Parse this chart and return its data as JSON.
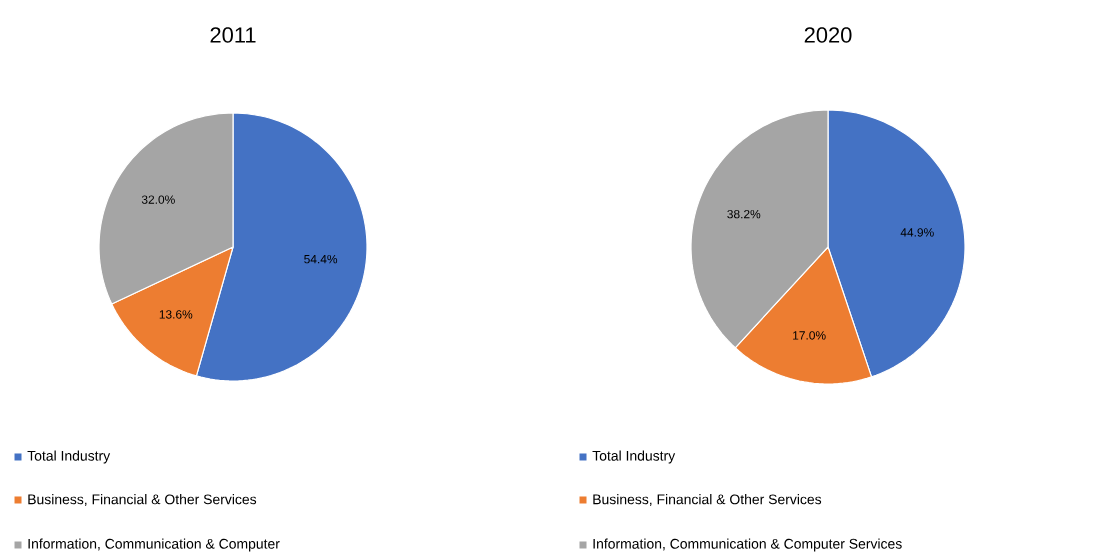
{
  "chart_data": [
    {
      "type": "pie",
      "title": "2011",
      "categories": [
        "Total Industry",
        "Business, Financial & Other Services",
        "Information, Communication & Computer"
      ],
      "values": [
        54.4,
        13.6,
        32.0
      ],
      "value_labels": [
        "54.4%",
        "13.6%",
        "32.0%"
      ],
      "colors": [
        "#4472c4",
        "#ed7d31",
        "#a5a5a5"
      ],
      "legend": "bottom"
    },
    {
      "type": "pie",
      "title": "2020",
      "categories": [
        "Total Industry",
        "Business, Financial & Other Services",
        "Information, Communication & Computer Services"
      ],
      "values": [
        44.9,
        17.0,
        38.2
      ],
      "value_labels": [
        "44.9%",
        "17.0%",
        "38.2%"
      ],
      "colors": [
        "#4472c4",
        "#ed7d31",
        "#a5a5a5"
      ],
      "legend": "bottom"
    }
  ]
}
